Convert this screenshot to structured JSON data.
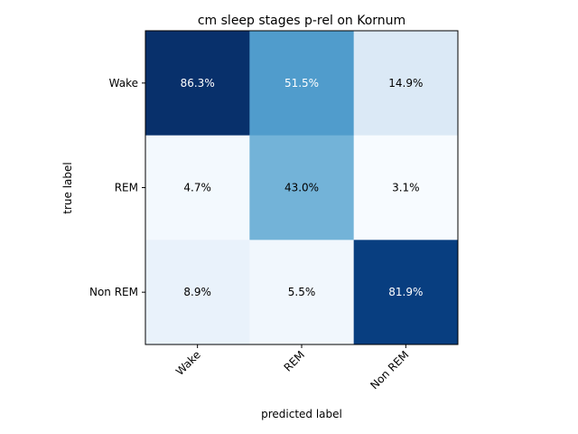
{
  "chart_data": {
    "type": "heatmap",
    "title": "cm sleep stages p-rel on Kornum",
    "xlabel": "predicted label",
    "ylabel": "true label",
    "x_categories": [
      "Wake",
      "REM",
      "Non REM"
    ],
    "y_categories": [
      "Wake",
      "REM",
      "Non REM"
    ],
    "values": [
      [
        86.3,
        51.5,
        14.9
      ],
      [
        4.7,
        43.0,
        3.1
      ],
      [
        8.9,
        5.5,
        81.9
      ]
    ],
    "value_labels": [
      [
        "86.3%",
        "51.5%",
        "14.9%"
      ],
      [
        "4.7%",
        "43.0%",
        "3.1%"
      ],
      [
        "8.9%",
        "5.5%",
        "81.9%"
      ]
    ],
    "colormap": "Blues",
    "vmin": 3.1,
    "vmax": 86.3
  }
}
